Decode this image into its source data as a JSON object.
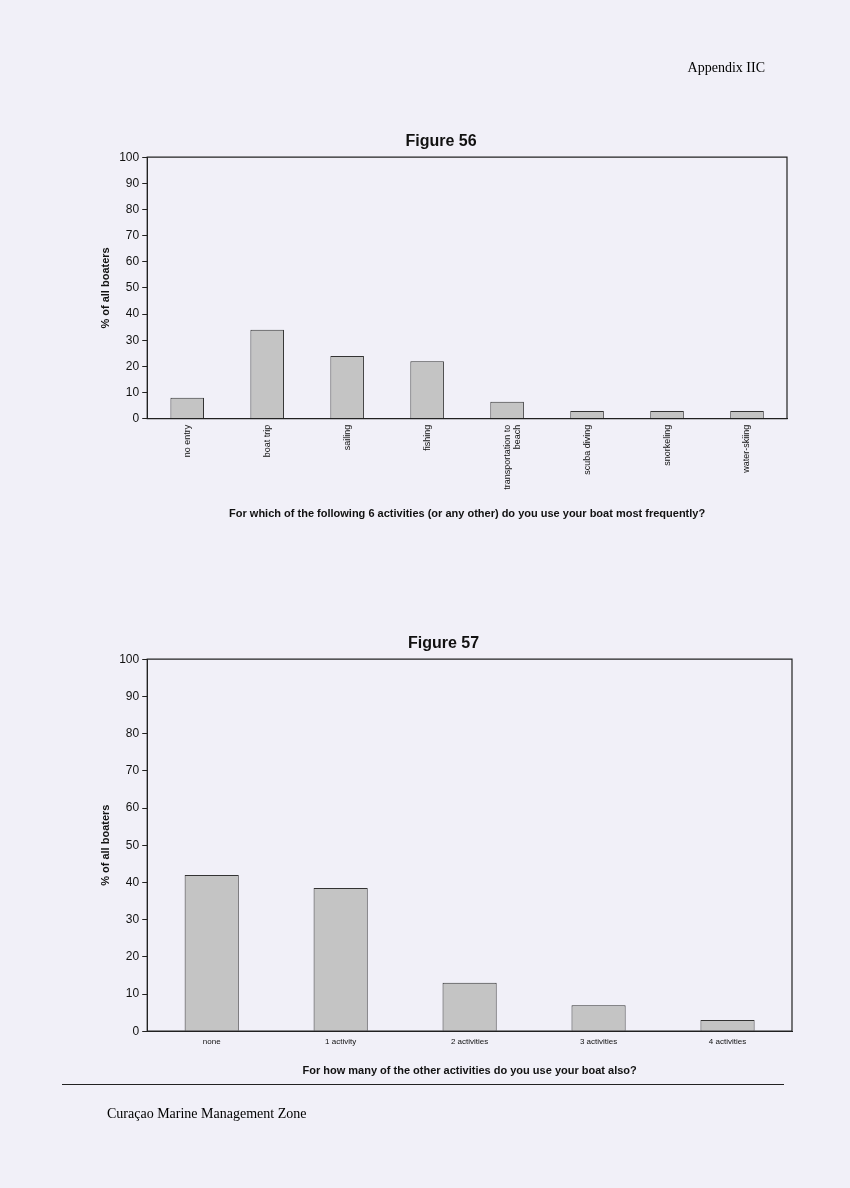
{
  "chart_data": [
    {
      "type": "bar",
      "title": "Figure 56",
      "xlabel": "For which of the following 6 activities (or any other) do you use your boat most frequently?",
      "ylabel": "% of all boaters",
      "annotations": [
        "Appendix IIC"
      ],
      "categories": [
        "no entry",
        "boat trip",
        "sailing",
        "fishing",
        "transportation to beach",
        "scuba diving",
        "snorkeling",
        "water-skiing"
      ],
      "values": [
        8,
        34,
        24,
        22,
        6.5,
        3,
        3,
        3
      ],
      "color": "#c4c4c4",
      "ylim": [
        0,
        100
      ],
      "yticks": [
        0,
        10,
        20,
        30,
        40,
        50,
        60,
        70,
        80,
        90,
        100
      ],
      "grid": false,
      "legend": false
    },
    {
      "type": "bar",
      "title": "Figure 57",
      "xlabel": "For how many of the other activities do you use your boat also?",
      "ylabel": "% of all boaters",
      "annotations": [
        "Curaçao Marine Management Zone"
      ],
      "categories": [
        "none",
        "1 activity",
        "2 activities",
        "3 activities",
        "4 activities"
      ],
      "values": [
        42,
        38.5,
        13,
        7,
        3
      ],
      "color": "#c4c4c4",
      "ylim": [
        0,
        100
      ],
      "yticks": [
        0,
        10,
        20,
        30,
        40,
        50,
        60,
        70,
        80,
        90,
        100
      ],
      "grid": false,
      "legend": false
    }
  ]
}
